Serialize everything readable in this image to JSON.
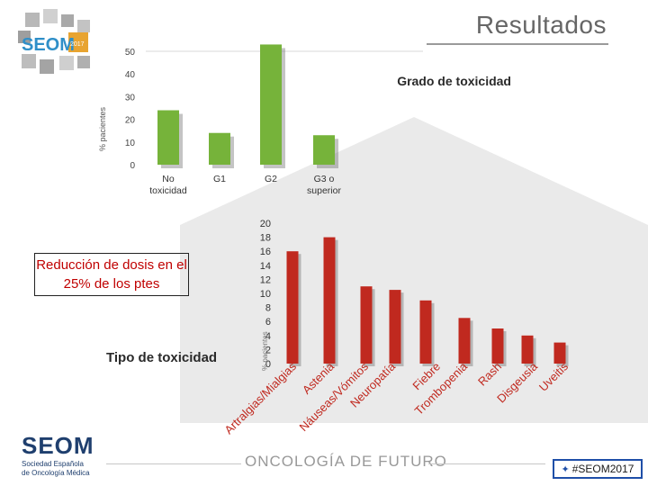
{
  "slide": {
    "title": "Resultados",
    "footer_text": "ONCOLOGÍA DE FUTURO",
    "hashtag": "#SEOM2017",
    "logo_top_text": "SEOM",
    "logo_top_year": "2017",
    "logo_bottom_text": "SEOM",
    "logo_bottom_sub1": "Sociedad Española",
    "logo_bottom_sub2": "de Oncología Médica",
    "note_box": "Reducción de dosis en el 25% de los ptes",
    "label_tipo": "Tipo de toxicidad",
    "colors": {
      "bar_green": "#76b33a",
      "bar_red": "#c0291f",
      "title_gray": "#666666",
      "note_red": "#c00000",
      "brand_blue": "#1f3f6e"
    }
  },
  "chart_data": [
    {
      "type": "bar",
      "title": "Grado de toxicidad",
      "ylabel": "% pacientes",
      "categories": [
        "No toxicidad",
        "G1",
        "G2",
        "G3 o superior"
      ],
      "values": [
        24,
        14,
        53,
        13
      ],
      "ylim": [
        0,
        50
      ],
      "yticks": [
        0,
        10,
        20,
        30,
        40,
        50
      ],
      "grid": false
    },
    {
      "type": "bar",
      "title": "",
      "ylabel": "% pacientes",
      "categories": [
        "Artralgias/Mialgias",
        "Astenia",
        "Náuseas/Vómitos",
        "Neuropatía",
        "Fiebre",
        "Trombopenia",
        "Rash",
        "Disgeusia",
        "Uveitis"
      ],
      "values": [
        16,
        18,
        11,
        10.5,
        9,
        6.5,
        5,
        4,
        3
      ],
      "ylim": [
        0,
        20
      ],
      "yticks": [
        0,
        2,
        4,
        6,
        8,
        10,
        12,
        14,
        16,
        18,
        20
      ],
      "grid": false
    }
  ]
}
